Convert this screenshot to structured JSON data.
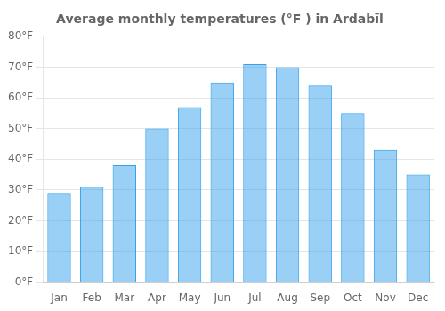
{
  "chart_data": {
    "type": "bar",
    "title": "Average monthly temperatures (°F ) in Ardabīl",
    "categories": [
      "Jan",
      "Feb",
      "Mar",
      "Apr",
      "May",
      "Jun",
      "Jul",
      "Aug",
      "Sep",
      "Oct",
      "Nov",
      "Dec"
    ],
    "values": [
      29,
      31,
      38,
      50,
      57,
      65,
      71,
      70,
      64,
      55,
      43,
      35
    ],
    "ylim": [
      0,
      80
    ],
    "yticks": [
      {
        "value": 0,
        "label": "0°F"
      },
      {
        "value": 10,
        "label": "10°F"
      },
      {
        "value": 20,
        "label": "20°F"
      },
      {
        "value": 30,
        "label": "30°F"
      },
      {
        "value": 40,
        "label": "40°F"
      },
      {
        "value": 50,
        "label": "50°F"
      },
      {
        "value": 60,
        "label": "60°F"
      },
      {
        "value": 70,
        "label": "70°F"
      },
      {
        "value": 80,
        "label": "80°F"
      }
    ],
    "grid": true
  }
}
